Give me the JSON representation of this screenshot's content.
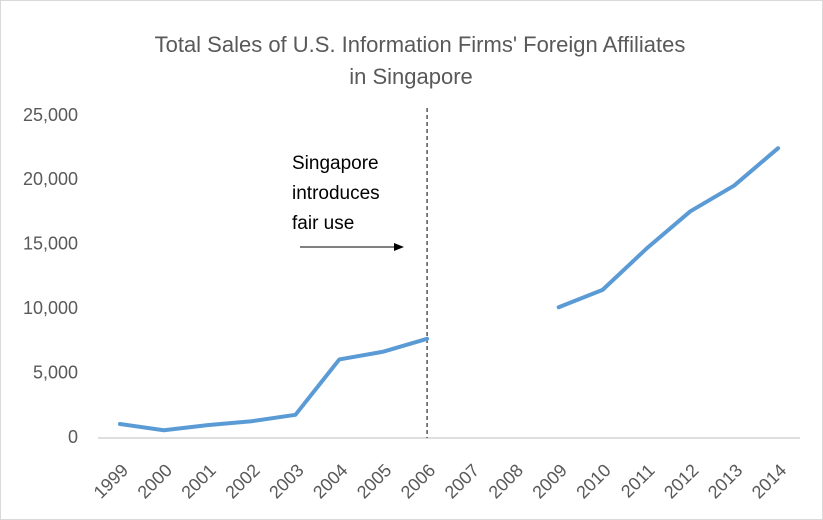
{
  "chart_data": {
    "type": "line",
    "title": [
      "Total Sales of U.S. Information Firms' Foreign Affiliates",
      "in Singapore"
    ],
    "categories": [
      "1999",
      "2000",
      "2001",
      "2002",
      "2003",
      "2004",
      "2005",
      "2006",
      "2007",
      "2008",
      "2009",
      "2010",
      "2011",
      "2012",
      "2013",
      "2014"
    ],
    "values": [
      1090,
      600,
      1000,
      1300,
      1800,
      6100,
      6700,
      7700,
      null,
      null,
      10150,
      11500,
      14700,
      17600,
      19600,
      22500
    ],
    "color": "#5b9bd5",
    "ylim": [
      0,
      25000
    ],
    "yticks": [
      0,
      {
        "value": 5000,
        "label": "5,000"
      },
      {
        "value": 10000,
        "label": "10,000"
      },
      {
        "value": 15000,
        "label": "15,000"
      },
      {
        "value": 20000,
        "label": "20,000"
      },
      {
        "value": 25000,
        "label": "25,000"
      }
    ],
    "grid": false,
    "annotation": [
      "Singapore",
      "introduces",
      "fair use"
    ],
    "vline_category": "2006"
  }
}
